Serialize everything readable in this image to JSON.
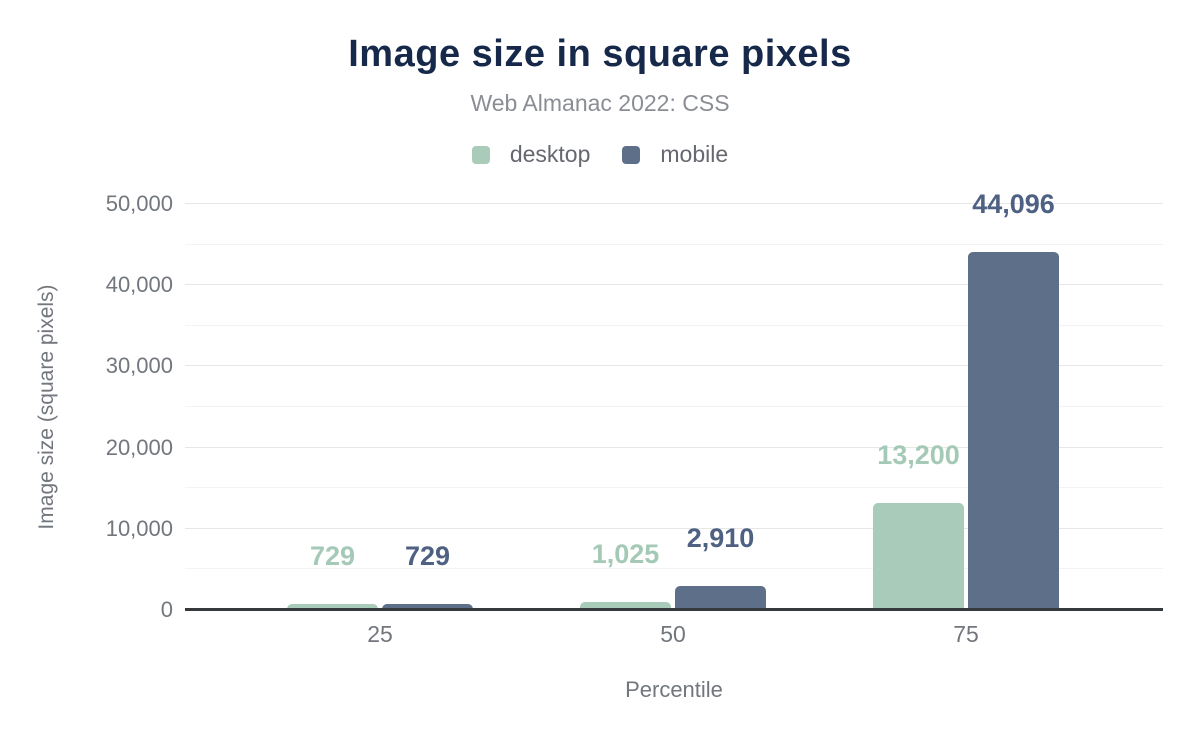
{
  "header": {
    "title": "Image size in square pixels",
    "subtitle": "Web Almanac 2022: CSS"
  },
  "chart_data": {
    "type": "bar",
    "title": "Image size in square pixels",
    "subtitle": "Web Almanac 2022: CSS",
    "categories": [
      "25",
      "50",
      "75"
    ],
    "series": [
      {
        "name": "desktop",
        "color": "#a8cbba",
        "label_color": "#a5c9b7",
        "values": [
          729,
          1025,
          13200
        ],
        "value_labels": [
          "729",
          "1,025",
          "13,200"
        ]
      },
      {
        "name": "mobile",
        "color": "#5e7089",
        "label_color": "#4e6183",
        "values": [
          729,
          2910,
          44096
        ],
        "value_labels": [
          "729",
          "2,910",
          "44,096"
        ]
      }
    ],
    "xlabel": "Percentile",
    "ylabel": "Image size (square pixels)",
    "ylim": [
      0,
      50000
    ],
    "ytick_step": 10000,
    "minor_step": 5000,
    "ytick_labels": [
      "0",
      "10,000",
      "20,000",
      "30,000",
      "40,000",
      "50,000"
    ],
    "grid": true,
    "legend_position": "top"
  },
  "colors": {
    "title": "#16294a",
    "subtitle": "#8a8e94",
    "axis_text": "#72767d",
    "grid_major": "#e7e7e7",
    "grid_minor": "#f3f3f3",
    "baseline": "#35393e"
  }
}
